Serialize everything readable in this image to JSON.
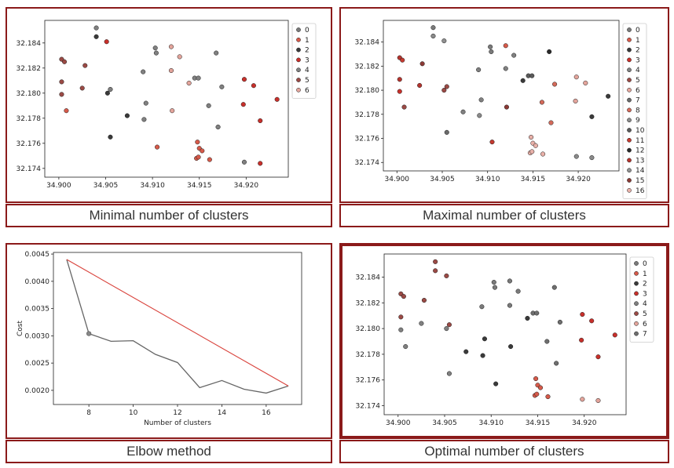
{
  "captions": {
    "minimal": "Minimal number of clusters",
    "maximal": "Maximal number of clusters",
    "elbow": "Elbow method",
    "optimal": "Optimal number of clusters"
  },
  "chart_data": [
    {
      "id": "minimal",
      "type": "scatter",
      "xlim": [
        34.8985,
        34.9245
      ],
      "ylim": [
        32.1733,
        32.1858
      ],
      "xticks": [
        "34.900",
        "34.905",
        "34.910",
        "34.915",
        "34.920"
      ],
      "yticks": [
        "32.174",
        "32.176",
        "32.178",
        "32.180",
        "32.182",
        "32.184"
      ],
      "legend_labels": [
        "0",
        "1",
        "2",
        "3",
        "4",
        "5",
        "6"
      ],
      "legend_position": "right",
      "grid": false,
      "points": [
        {
          "x": 34.904,
          "y": 32.1852,
          "c": 4
        },
        {
          "x": 34.904,
          "y": 32.1845,
          "c": 2
        },
        {
          "x": 34.9051,
          "y": 32.1841,
          "c": 3
        },
        {
          "x": 34.9003,
          "y": 32.1827,
          "c": 5
        },
        {
          "x": 34.9006,
          "y": 32.1825,
          "c": 5
        },
        {
          "x": 34.9028,
          "y": 32.1822,
          "c": 5
        },
        {
          "x": 34.9003,
          "y": 32.1809,
          "c": 5
        },
        {
          "x": 34.9025,
          "y": 32.1804,
          "c": 5
        },
        {
          "x": 34.9003,
          "y": 32.1799,
          "c": 5
        },
        {
          "x": 34.9055,
          "y": 32.1803,
          "c": 4
        },
        {
          "x": 34.9052,
          "y": 32.18,
          "c": 2
        },
        {
          "x": 34.9008,
          "y": 32.1786,
          "c": 1
        },
        {
          "x": 34.9073,
          "y": 32.1782,
          "c": 2
        },
        {
          "x": 34.9091,
          "y": 32.1779,
          "c": 4
        },
        {
          "x": 34.9093,
          "y": 32.1792,
          "c": 4
        },
        {
          "x": 34.909,
          "y": 32.1817,
          "c": 4
        },
        {
          "x": 34.9103,
          "y": 32.1836,
          "c": 4
        },
        {
          "x": 34.9104,
          "y": 32.1832,
          "c": 4
        },
        {
          "x": 34.912,
          "y": 32.1837,
          "c": 6
        },
        {
          "x": 34.9129,
          "y": 32.1829,
          "c": 6
        },
        {
          "x": 34.912,
          "y": 32.1818,
          "c": 6
        },
        {
          "x": 34.9139,
          "y": 32.1808,
          "c": 6
        },
        {
          "x": 34.9145,
          "y": 32.1812,
          "c": 4
        },
        {
          "x": 34.9149,
          "y": 32.1812,
          "c": 4
        },
        {
          "x": 34.9168,
          "y": 32.1832,
          "c": 4
        },
        {
          "x": 34.9174,
          "y": 32.1805,
          "c": 4
        },
        {
          "x": 34.916,
          "y": 32.179,
          "c": 4
        },
        {
          "x": 34.9121,
          "y": 32.1786,
          "c": 6
        },
        {
          "x": 34.917,
          "y": 32.1773,
          "c": 4
        },
        {
          "x": 34.9055,
          "y": 32.1765,
          "c": 2
        },
        {
          "x": 34.9105,
          "y": 32.1757,
          "c": 1
        },
        {
          "x": 34.9148,
          "y": 32.1761,
          "c": 1
        },
        {
          "x": 34.915,
          "y": 32.1756,
          "c": 1
        },
        {
          "x": 34.9153,
          "y": 32.1754,
          "c": 1
        },
        {
          "x": 34.9147,
          "y": 32.1748,
          "c": 1
        },
        {
          "x": 34.9149,
          "y": 32.1749,
          "c": 1
        },
        {
          "x": 34.9161,
          "y": 32.1747,
          "c": 1
        },
        {
          "x": 34.9198,
          "y": 32.1811,
          "c": 3
        },
        {
          "x": 34.9208,
          "y": 32.1806,
          "c": 3
        },
        {
          "x": 34.9197,
          "y": 32.1791,
          "c": 3
        },
        {
          "x": 34.9233,
          "y": 32.1795,
          "c": 3
        },
        {
          "x": 34.9215,
          "y": 32.1778,
          "c": 3
        },
        {
          "x": 34.9198,
          "y": 32.1745,
          "c": 4
        },
        {
          "x": 34.9215,
          "y": 32.1744,
          "c": 3
        }
      ]
    },
    {
      "id": "maximal",
      "type": "scatter",
      "xlim": [
        34.8985,
        34.9245
      ],
      "ylim": [
        32.1733,
        32.1858
      ],
      "xticks": [
        "34.900",
        "34.905",
        "34.910",
        "34.915",
        "34.920"
      ],
      "yticks": [
        "32.174",
        "32.176",
        "32.178",
        "32.180",
        "32.182",
        "32.184"
      ],
      "legend_labels": [
        "0",
        "1",
        "2",
        "3",
        "4",
        "5",
        "6",
        "7",
        "8",
        "9",
        "10",
        "11",
        "12",
        "13",
        "14",
        "15",
        "16"
      ],
      "legend_position": "right",
      "grid": false,
      "points": [
        {
          "x": 34.904,
          "y": 32.1852,
          "c": 0
        },
        {
          "x": 34.904,
          "y": 32.1845,
          "c": 9
        },
        {
          "x": 34.9052,
          "y": 32.1841,
          "c": 14
        },
        {
          "x": 34.9003,
          "y": 32.1827,
          "c": 13
        },
        {
          "x": 34.9006,
          "y": 32.1825,
          "c": 11
        },
        {
          "x": 34.9028,
          "y": 32.1822,
          "c": 15
        },
        {
          "x": 34.9003,
          "y": 32.1809,
          "c": 13
        },
        {
          "x": 34.9025,
          "y": 32.1804,
          "c": 13
        },
        {
          "x": 34.9003,
          "y": 32.1799,
          "c": 3
        },
        {
          "x": 34.9055,
          "y": 32.1803,
          "c": 5
        },
        {
          "x": 34.9052,
          "y": 32.18,
          "c": 5
        },
        {
          "x": 34.9008,
          "y": 32.1786,
          "c": 5
        },
        {
          "x": 34.9073,
          "y": 32.1782,
          "c": 4
        },
        {
          "x": 34.9091,
          "y": 32.1779,
          "c": 9
        },
        {
          "x": 34.9093,
          "y": 32.1792,
          "c": 4
        },
        {
          "x": 34.909,
          "y": 32.1817,
          "c": 4
        },
        {
          "x": 34.9103,
          "y": 32.1836,
          "c": 0
        },
        {
          "x": 34.9104,
          "y": 32.1832,
          "c": 0
        },
        {
          "x": 34.912,
          "y": 32.1837,
          "c": 1
        },
        {
          "x": 34.9129,
          "y": 32.1829,
          "c": 4
        },
        {
          "x": 34.912,
          "y": 32.1818,
          "c": 4
        },
        {
          "x": 34.9139,
          "y": 32.1808,
          "c": 2
        },
        {
          "x": 34.9145,
          "y": 32.1812,
          "c": 10
        },
        {
          "x": 34.9149,
          "y": 32.1812,
          "c": 10
        },
        {
          "x": 34.9168,
          "y": 32.1832,
          "c": 12
        },
        {
          "x": 34.9174,
          "y": 32.1805,
          "c": 8
        },
        {
          "x": 34.916,
          "y": 32.179,
          "c": 8
        },
        {
          "x": 34.9121,
          "y": 32.1786,
          "c": 15
        },
        {
          "x": 34.917,
          "y": 32.1773,
          "c": 8
        },
        {
          "x": 34.9055,
          "y": 32.1765,
          "c": 7
        },
        {
          "x": 34.9105,
          "y": 32.1757,
          "c": 11
        },
        {
          "x": 34.9148,
          "y": 32.1761,
          "c": 16
        },
        {
          "x": 34.915,
          "y": 32.1756,
          "c": 16
        },
        {
          "x": 34.9153,
          "y": 32.1754,
          "c": 16
        },
        {
          "x": 34.9147,
          "y": 32.1748,
          "c": 16
        },
        {
          "x": 34.9149,
          "y": 32.1749,
          "c": 16
        },
        {
          "x": 34.9161,
          "y": 32.1747,
          "c": 16
        },
        {
          "x": 34.9198,
          "y": 32.1811,
          "c": 6
        },
        {
          "x": 34.9208,
          "y": 32.1806,
          "c": 6
        },
        {
          "x": 34.9197,
          "y": 32.1791,
          "c": 6
        },
        {
          "x": 34.9233,
          "y": 32.1795,
          "c": 2
        },
        {
          "x": 34.9215,
          "y": 32.1778,
          "c": 2
        },
        {
          "x": 34.9198,
          "y": 32.1745,
          "c": 9
        },
        {
          "x": 34.9215,
          "y": 32.1744,
          "c": 9
        }
      ]
    },
    {
      "id": "elbow",
      "type": "line",
      "xlim": [
        6.4,
        17.6
      ],
      "ylim": [
        0.00174,
        0.00453
      ],
      "xlabel": "Number of clusters",
      "ylabel": "Cost",
      "xticks": [
        8,
        10,
        12,
        14,
        16
      ],
      "yticks": [
        "0.0020",
        "0.0025",
        "0.0030",
        "0.0035",
        "0.0040",
        "0.0045"
      ],
      "ytick_values": [
        0.002,
        0.0025,
        0.003,
        0.0035,
        0.004,
        0.0045
      ],
      "grid": false,
      "series": [
        {
          "x": [
            7,
            8,
            9,
            10,
            11,
            12,
            13,
            14,
            15,
            16,
            17
          ],
          "y": [
            0.0044,
            0.00304,
            0.0029,
            0.00291,
            0.00266,
            0.00251,
            0.00205,
            0.00218,
            0.00202,
            0.00195,
            0.00208
          ],
          "color": "#666666"
        },
        {
          "x": [
            7,
            17
          ],
          "y": [
            0.0044,
            0.00208
          ],
          "color": "#d9423b"
        }
      ],
      "marker": {
        "x": 8,
        "y": 0.00304
      }
    },
    {
      "id": "optimal",
      "type": "scatter",
      "xlim": [
        34.8985,
        34.9245
      ],
      "ylim": [
        32.1733,
        32.1858
      ],
      "xticks": [
        "34.900",
        "34.905",
        "34.910",
        "34.915",
        "34.920"
      ],
      "yticks": [
        "32.174",
        "32.176",
        "32.178",
        "32.180",
        "32.182",
        "32.184"
      ],
      "legend_labels": [
        "0",
        "1",
        "2",
        "3",
        "4",
        "5",
        "6",
        "7"
      ],
      "legend_position": "right",
      "grid": false,
      "points": [
        {
          "x": 34.904,
          "y": 32.1852,
          "c": 5
        },
        {
          "x": 34.904,
          "y": 32.1845,
          "c": 5
        },
        {
          "x": 34.9052,
          "y": 32.1841,
          "c": 5
        },
        {
          "x": 34.9003,
          "y": 32.1827,
          "c": 5
        },
        {
          "x": 34.9006,
          "y": 32.1825,
          "c": 5
        },
        {
          "x": 34.9028,
          "y": 32.1822,
          "c": 5
        },
        {
          "x": 34.9003,
          "y": 32.1809,
          "c": 5
        },
        {
          "x": 34.9025,
          "y": 32.1804,
          "c": 4
        },
        {
          "x": 34.9003,
          "y": 32.1799,
          "c": 4
        },
        {
          "x": 34.9055,
          "y": 32.1803,
          "c": 5
        },
        {
          "x": 34.9052,
          "y": 32.18,
          "c": 4
        },
        {
          "x": 34.9008,
          "y": 32.1786,
          "c": 4
        },
        {
          "x": 34.9073,
          "y": 32.1782,
          "c": 2
        },
        {
          "x": 34.9091,
          "y": 32.1779,
          "c": 2
        },
        {
          "x": 34.9093,
          "y": 32.1792,
          "c": 2
        },
        {
          "x": 34.909,
          "y": 32.1817,
          "c": 0
        },
        {
          "x": 34.9103,
          "y": 32.1836,
          "c": 0
        },
        {
          "x": 34.9104,
          "y": 32.1832,
          "c": 0
        },
        {
          "x": 34.912,
          "y": 32.1837,
          "c": 0
        },
        {
          "x": 34.9129,
          "y": 32.1829,
          "c": 0
        },
        {
          "x": 34.912,
          "y": 32.1818,
          "c": 0
        },
        {
          "x": 34.9139,
          "y": 32.1808,
          "c": 2
        },
        {
          "x": 34.9145,
          "y": 32.1812,
          "c": 7
        },
        {
          "x": 34.9149,
          "y": 32.1812,
          "c": 7
        },
        {
          "x": 34.9168,
          "y": 32.1832,
          "c": 7
        },
        {
          "x": 34.9174,
          "y": 32.1805,
          "c": 7
        },
        {
          "x": 34.916,
          "y": 32.179,
          "c": 7
        },
        {
          "x": 34.9121,
          "y": 32.1786,
          "c": 2
        },
        {
          "x": 34.917,
          "y": 32.1773,
          "c": 7
        },
        {
          "x": 34.9055,
          "y": 32.1765,
          "c": 4
        },
        {
          "x": 34.9105,
          "y": 32.1757,
          "c": 2
        },
        {
          "x": 34.9148,
          "y": 32.1761,
          "c": 1
        },
        {
          "x": 34.915,
          "y": 32.1756,
          "c": 1
        },
        {
          "x": 34.9153,
          "y": 32.1754,
          "c": 1
        },
        {
          "x": 34.9147,
          "y": 32.1748,
          "c": 1
        },
        {
          "x": 34.9149,
          "y": 32.1749,
          "c": 1
        },
        {
          "x": 34.9161,
          "y": 32.1747,
          "c": 1
        },
        {
          "x": 34.9198,
          "y": 32.1811,
          "c": 3
        },
        {
          "x": 34.9208,
          "y": 32.1806,
          "c": 3
        },
        {
          "x": 34.9197,
          "y": 32.1791,
          "c": 3
        },
        {
          "x": 34.9233,
          "y": 32.1795,
          "c": 3
        },
        {
          "x": 34.9215,
          "y": 32.1778,
          "c": 3
        },
        {
          "x": 34.9198,
          "y": 32.1745,
          "c": 6
        },
        {
          "x": 34.9215,
          "y": 32.1744,
          "c": 6
        }
      ]
    }
  ],
  "palettes": {
    "minimal": [
      "#7a7a7a",
      "#d65a4a",
      "#3a3a3a",
      "#c8302b",
      "#808080",
      "#9b4a45",
      "#e3a49b"
    ],
    "maximal": [
      "#7a7a7a",
      "#d65a4a",
      "#3a3a3a",
      "#c8302b",
      "#808080",
      "#9b4a45",
      "#e3a49b",
      "#6a6a6a",
      "#d46a5a",
      "#8a8a8a",
      "#5a5a5a",
      "#c43a30",
      "#2a2a2a",
      "#b5342e",
      "#909090",
      "#8b3a35",
      "#e8b0a8"
    ],
    "optimal": [
      "#7a7a7a",
      "#d65a4a",
      "#3a3a3a",
      "#c8302b",
      "#808080",
      "#9b4a45",
      "#e3a49b",
      "#6e6e6e"
    ]
  }
}
